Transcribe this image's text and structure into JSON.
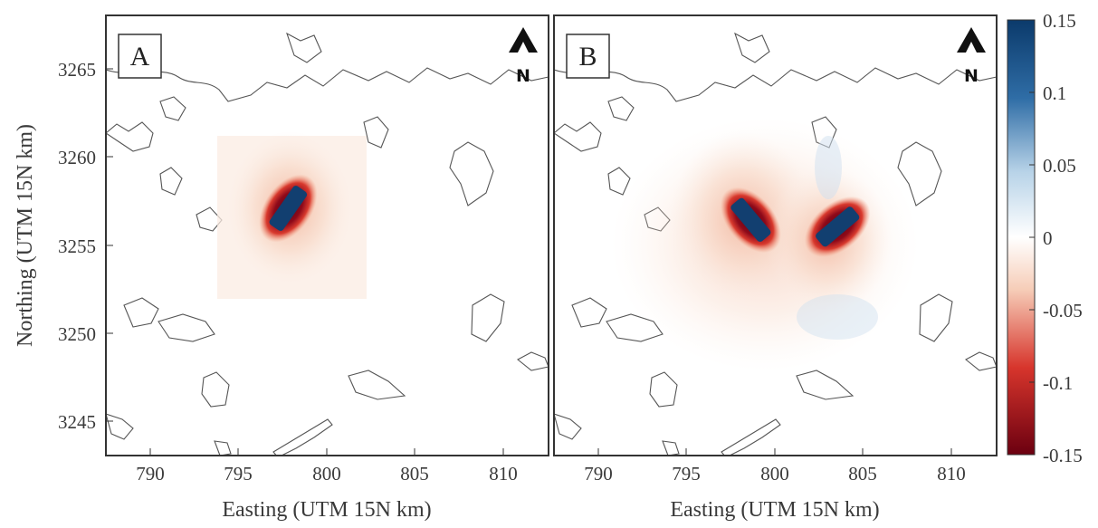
{
  "figure": {
    "panels": [
      {
        "id": "A",
        "letter": "A",
        "north_label": "N",
        "x_axis_label": "Easting (UTM 15N km)",
        "y_axis_label": "Northing (UTM 15N km)",
        "x_ticks": [
          "790",
          "795",
          "800",
          "805",
          "810"
        ],
        "y_ticks": [
          "3265",
          "3260",
          "3255",
          "3250",
          "3245"
        ]
      },
      {
        "id": "B",
        "letter": "B",
        "north_label": "N",
        "x_axis_label": "Easting (UTM 15N km)",
        "x_ticks": [
          "790",
          "795",
          "800",
          "805",
          "810"
        ]
      }
    ],
    "colorbar": {
      "ticks": [
        "0.15",
        "0.1",
        "0.05",
        "0",
        "-0.05",
        "-0.1",
        "-0.15"
      ],
      "min": -0.15,
      "max": 0.15,
      "colors": {
        "high": "#0b3a6b",
        "mid": "#ffffff",
        "low": "#6b0010"
      }
    }
  },
  "map_data": {
    "extent_easting_km": [
      787.5,
      812.5
    ],
    "extent_northing_km": [
      3242.5,
      3267.5
    ],
    "panel_A_features": [
      {
        "kind": "strong-negative-with-positive-core",
        "easting_km": 798.0,
        "northing_km": 3256.8
      }
    ],
    "panel_B_features": [
      {
        "kind": "strong-negative-with-positive-core",
        "easting_km": 798.0,
        "northing_km": 3256.5
      },
      {
        "kind": "strong-negative-with-positive-core",
        "easting_km": 803.0,
        "northing_km": 3255.5
      }
    ]
  }
}
